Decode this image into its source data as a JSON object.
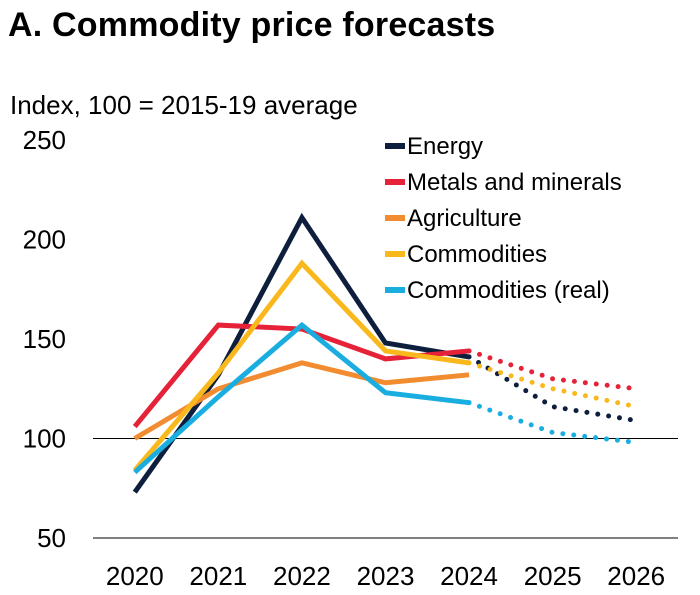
{
  "chart_data": {
    "type": "line",
    "title": "A. Commodity price forecasts",
    "subtitle": "Index, 100 = 2015-19 average",
    "x": [
      "2020",
      "2021",
      "2022",
      "2023",
      "2024",
      "2025",
      "2026"
    ],
    "ylim": [
      50,
      250
    ],
    "yticks": [
      "50",
      "100",
      "150",
      "200",
      "250"
    ],
    "reference_line": 100,
    "forecast_from": "2024",
    "legend_position": "top-right",
    "series": [
      {
        "name": "Energy",
        "color": "#0d1f3c",
        "values": [
          73,
          132,
          211,
          148,
          141,
          116,
          109
        ]
      },
      {
        "name": "Metals and minerals",
        "color": "#e52238",
        "values": [
          106,
          157,
          155,
          140,
          144,
          130,
          125
        ]
      },
      {
        "name": "Agriculture",
        "color": "#f28c30",
        "values": [
          100,
          125,
          138,
          128,
          132,
          null,
          null
        ]
      },
      {
        "name": "Commodities",
        "color": "#f9b81b",
        "values": [
          84,
          133,
          188,
          144,
          138,
          125,
          116
        ]
      },
      {
        "name": "Commodities (real)",
        "color": "#1aaee0",
        "values": [
          83,
          121,
          157,
          123,
          118,
          103,
          98
        ]
      }
    ]
  }
}
